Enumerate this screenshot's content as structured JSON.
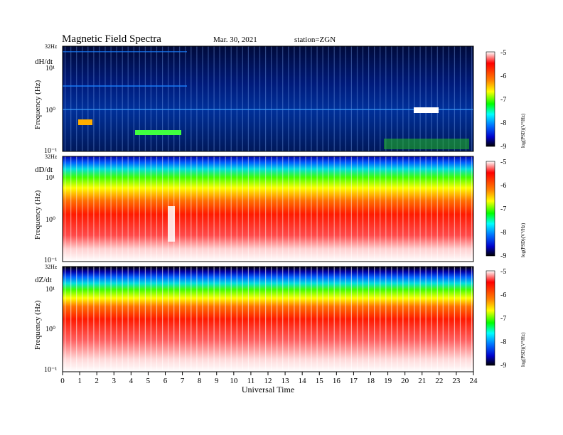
{
  "header": {
    "title": "Magnetic  Field  Spectra",
    "date": "Mar. 30, 2021",
    "station": "station=ZGN"
  },
  "chart_data": {
    "type": "heatmap",
    "xlabel": "Universal  Time",
    "x_ticks": [
      "0",
      "1",
      "2",
      "3",
      "4",
      "5",
      "6",
      "7",
      "8",
      "9",
      "10",
      "11",
      "12",
      "13",
      "14",
      "15",
      "16",
      "17",
      "18",
      "19",
      "20",
      "21",
      "22",
      "23",
      "24"
    ],
    "xlim": [
      0,
      24
    ],
    "y_scale": "log",
    "ylim": [
      0.1,
      32
    ],
    "y_top_label": "32Hz",
    "colorbar": {
      "label": "log(PSD)(V²/Hz)",
      "ticks": [
        "-5",
        "-6",
        "-7",
        "-8",
        "-9"
      ],
      "range": [
        -9,
        -5
      ],
      "colors": [
        "#000000",
        "#0000cc",
        "#0070ff",
        "#00ffff",
        "#00ff00",
        "#ffff00",
        "#ff8000",
        "#ff0000",
        "#ffffff"
      ]
    },
    "panels": [
      {
        "component": "dH/dt",
        "ylabel": "Frequency  (Hz)",
        "y_ticks": [
          "10¹",
          "10⁰",
          "10⁻¹"
        ],
        "background": "low-power (blue)",
        "features": [
          "narrowband lines near 1 Hz",
          "bursts near 1-1.5 UT, 4.5-6.5 UT and 20.5-22 UT"
        ]
      },
      {
        "component": "dD/dt",
        "ylabel": "Frequency  (Hz)",
        "y_ticks": [
          "10¹",
          "10⁰",
          "10⁻¹"
        ],
        "background": "high-power (red)",
        "features": [
          "green/yellow band above ~5 Hz",
          "low-frequency gap near 6.5 UT"
        ]
      },
      {
        "component": "dZ/dt",
        "ylabel": "Frequency  (Hz)",
        "y_ticks": [
          "10¹",
          "10⁰",
          "10⁻¹"
        ],
        "background": "high-power (red)",
        "features": [
          "green/blue band above ~10 Hz",
          "periodic vertical stripes"
        ]
      }
    ]
  }
}
